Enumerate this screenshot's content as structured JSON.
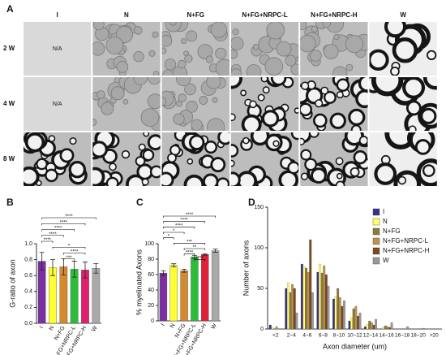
{
  "figure": {
    "panel_labels": [
      "A",
      "B",
      "C",
      "D"
    ],
    "columns": [
      "I",
      "N",
      "N+FG",
      "N+FG+NRPC-L",
      "N+FG+NRPC-H",
      "W"
    ],
    "rows": [
      "2 W",
      "4 W",
      "8 W"
    ],
    "na_label": "N/A"
  },
  "chart_data": [
    {
      "type": "bar",
      "ylabel": "G-ratio of axon",
      "categories": [
        "I",
        "N",
        "N+FG",
        "N+FG+NRPC-L",
        "N+FG+NRPC-H",
        "W"
      ],
      "values": [
        0.78,
        0.7,
        0.71,
        0.68,
        0.67,
        0.69
      ],
      "errors": [
        0.11,
        0.1,
        0.1,
        0.1,
        0.1,
        0.06
      ],
      "colors": [
        "#7b2fa0",
        "#ffff33",
        "#d4892c",
        "#2dbb3a",
        "#e0206f",
        "#a9a9a9"
      ],
      "ylim": [
        0,
        1
      ],
      "yticks": [
        {
          "value": 0,
          "label": "0.0"
        },
        0.2,
        0.4,
        0.6,
        0.8,
        {
          "value": 1,
          "label": "1.0"
        }
      ],
      "annotations": [
        "****",
        "****",
        "****",
        "****",
        "****",
        "*",
        "****",
        "***"
      ]
    },
    {
      "type": "bar",
      "ylabel": "% myelinated Axons",
      "categories": [
        "I",
        "N",
        "N+FG",
        "N+FG+NRPC-L",
        "N+FG+NRPC-H",
        "W"
      ],
      "values": [
        62,
        72,
        65,
        83,
        86,
        91
      ],
      "errors": [
        3,
        2,
        2,
        2,
        1,
        2
      ],
      "colors": [
        "#7b2fa0",
        "#ffff33",
        "#d4892c",
        "#2dbb3a",
        "#e0203a",
        "#a9a9a9"
      ],
      "ylim": [
        0,
        100
      ],
      "yticks": [
        0,
        20,
        40,
        60,
        80,
        100
      ],
      "annotations": [
        "****",
        "****",
        "****",
        "*",
        "*",
        "***",
        "**",
        "****",
        "****"
      ]
    },
    {
      "type": "grouped_bar",
      "xlabel": "Axon diameter (um)",
      "ylabel": "Number of axons",
      "categories": [
        "<2",
        "2~4",
        "4~6",
        "6~8",
        "8~10",
        "10~12",
        "12~14",
        "14~16",
        "16~18",
        "18~20",
        ">20"
      ],
      "series": [
        {
          "name": "I",
          "color": "#3a2f8f",
          "values": [
            5,
            50,
            80,
            70,
            37,
            10,
            3,
            0,
            0,
            0,
            0
          ]
        },
        {
          "name": "N",
          "color": "#ffff66",
          "values": [
            2,
            57,
            77,
            80,
            40,
            14,
            6,
            2,
            0,
            0,
            0
          ]
        },
        {
          "name": "N+FG",
          "color": "#8b7a3a",
          "values": [
            0,
            45,
            75,
            69,
            50,
            25,
            10,
            4,
            0,
            0,
            0
          ]
        },
        {
          "name": "N+FG+NRPC-L",
          "color": "#c09050",
          "values": [
            3,
            55,
            70,
            78,
            39,
            28,
            8,
            3,
            0,
            0,
            0
          ]
        },
        {
          "name": "N+FG+NRPC-H",
          "color": "#7a4a20",
          "values": [
            0,
            50,
            110,
            67,
            28,
            16,
            5,
            2,
            0,
            0,
            0
          ]
        },
        {
          "name": "W",
          "color": "#999999",
          "values": [
            0,
            20,
            45,
            53,
            35,
            20,
            12,
            8,
            3,
            1,
            0
          ]
        }
      ],
      "ylim": [
        0,
        150
      ],
      "yticks": [
        0,
        50,
        100,
        150
      ],
      "legend": "upper right"
    }
  ]
}
